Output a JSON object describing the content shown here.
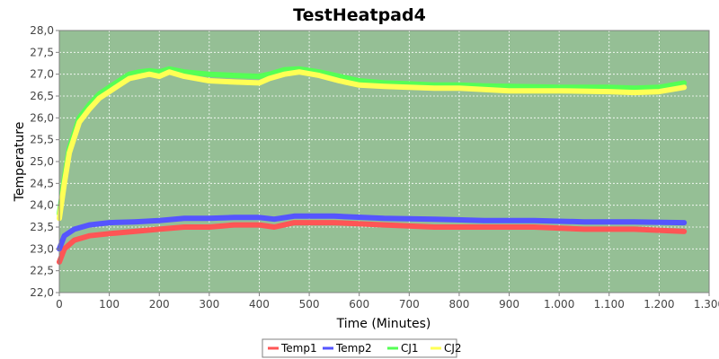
{
  "chart_data": {
    "type": "line",
    "title": "TestHeatpad4",
    "xlabel": "Time (Minutes)",
    "ylabel": "Temperature",
    "xlim": [
      0,
      1300
    ],
    "ylim": [
      22.0,
      28.0
    ],
    "x_ticks": [
      0,
      100,
      200,
      300,
      400,
      500,
      600,
      700,
      800,
      900,
      1000,
      1100,
      1200,
      1300
    ],
    "x_tick_labels": [
      "0",
      "100",
      "200",
      "300",
      "400",
      "500",
      "600",
      "700",
      "800",
      "900",
      "1.000",
      "1.100",
      "1.200",
      "1.300"
    ],
    "y_ticks": [
      22.0,
      22.5,
      23.0,
      23.5,
      24.0,
      24.5,
      25.0,
      25.5,
      26.0,
      26.5,
      27.0,
      27.5,
      28.0
    ],
    "y_tick_labels": [
      "22,0",
      "22,5",
      "23,0",
      "23,5",
      "24,0",
      "24,5",
      "25,0",
      "25,5",
      "26,0",
      "26,5",
      "27,0",
      "27,5",
      "28,0"
    ],
    "grid": true,
    "plot_background": "#95bf95",
    "legend_position": "bottom",
    "series": [
      {
        "name": "Temp1",
        "color": "#ff5555",
        "points": [
          [
            0,
            22.7
          ],
          [
            10,
            23.0
          ],
          [
            30,
            23.2
          ],
          [
            60,
            23.3
          ],
          [
            100,
            23.35
          ],
          [
            150,
            23.4
          ],
          [
            200,
            23.45
          ],
          [
            250,
            23.5
          ],
          [
            300,
            23.5
          ],
          [
            350,
            23.55
          ],
          [
            400,
            23.55
          ],
          [
            430,
            23.5
          ],
          [
            470,
            23.6
          ],
          [
            550,
            23.6
          ],
          [
            650,
            23.55
          ],
          [
            750,
            23.5
          ],
          [
            850,
            23.5
          ],
          [
            950,
            23.5
          ],
          [
            1050,
            23.45
          ],
          [
            1150,
            23.45
          ],
          [
            1250,
            23.4
          ]
        ]
      },
      {
        "name": "Temp2",
        "color": "#5555ff",
        "points": [
          [
            0,
            23.0
          ],
          [
            10,
            23.3
          ],
          [
            30,
            23.45
          ],
          [
            60,
            23.55
          ],
          [
            100,
            23.6
          ],
          [
            150,
            23.62
          ],
          [
            200,
            23.65
          ],
          [
            250,
            23.7
          ],
          [
            300,
            23.7
          ],
          [
            350,
            23.72
          ],
          [
            400,
            23.72
          ],
          [
            430,
            23.68
          ],
          [
            470,
            23.75
          ],
          [
            550,
            23.75
          ],
          [
            650,
            23.7
          ],
          [
            750,
            23.68
          ],
          [
            850,
            23.65
          ],
          [
            950,
            23.65
          ],
          [
            1050,
            23.62
          ],
          [
            1150,
            23.62
          ],
          [
            1250,
            23.6
          ]
        ]
      },
      {
        "name": "CJ1",
        "color": "#55ff55",
        "points": [
          [
            0,
            23.8
          ],
          [
            10,
            24.6
          ],
          [
            20,
            25.3
          ],
          [
            40,
            26.0
          ],
          [
            60,
            26.3
          ],
          [
            80,
            26.55
          ],
          [
            100,
            26.7
          ],
          [
            120,
            26.85
          ],
          [
            140,
            27.0
          ],
          [
            160,
            27.05
          ],
          [
            180,
            27.08
          ],
          [
            200,
            27.05
          ],
          [
            220,
            27.12
          ],
          [
            250,
            27.05
          ],
          [
            300,
            27.0
          ],
          [
            350,
            26.97
          ],
          [
            400,
            26.95
          ],
          [
            420,
            27.0
          ],
          [
            450,
            27.1
          ],
          [
            480,
            27.12
          ],
          [
            520,
            27.05
          ],
          [
            560,
            26.95
          ],
          [
            600,
            26.85
          ],
          [
            650,
            26.8
          ],
          [
            700,
            26.78
          ],
          [
            750,
            26.75
          ],
          [
            800,
            26.75
          ],
          [
            850,
            26.73
          ],
          [
            900,
            26.72
          ],
          [
            1000,
            26.7
          ],
          [
            1100,
            26.7
          ],
          [
            1150,
            26.68
          ],
          [
            1200,
            26.7
          ],
          [
            1250,
            26.8
          ]
        ]
      },
      {
        "name": "CJ2",
        "color": "#ffff55",
        "points": [
          [
            0,
            23.7
          ],
          [
            10,
            24.5
          ],
          [
            20,
            25.2
          ],
          [
            40,
            25.9
          ],
          [
            60,
            26.2
          ],
          [
            80,
            26.45
          ],
          [
            100,
            26.6
          ],
          [
            120,
            26.75
          ],
          [
            140,
            26.9
          ],
          [
            160,
            26.95
          ],
          [
            180,
            27.0
          ],
          [
            200,
            26.95
          ],
          [
            220,
            27.05
          ],
          [
            250,
            26.95
          ],
          [
            300,
            26.85
          ],
          [
            350,
            26.82
          ],
          [
            400,
            26.8
          ],
          [
            420,
            26.9
          ],
          [
            450,
            27.0
          ],
          [
            480,
            27.05
          ],
          [
            520,
            26.97
          ],
          [
            560,
            26.85
          ],
          [
            600,
            26.75
          ],
          [
            650,
            26.72
          ],
          [
            700,
            26.7
          ],
          [
            750,
            26.68
          ],
          [
            800,
            26.68
          ],
          [
            850,
            26.65
          ],
          [
            900,
            26.62
          ],
          [
            1000,
            26.62
          ],
          [
            1100,
            26.6
          ],
          [
            1150,
            26.58
          ],
          [
            1200,
            26.6
          ],
          [
            1250,
            26.7
          ]
        ]
      }
    ]
  }
}
